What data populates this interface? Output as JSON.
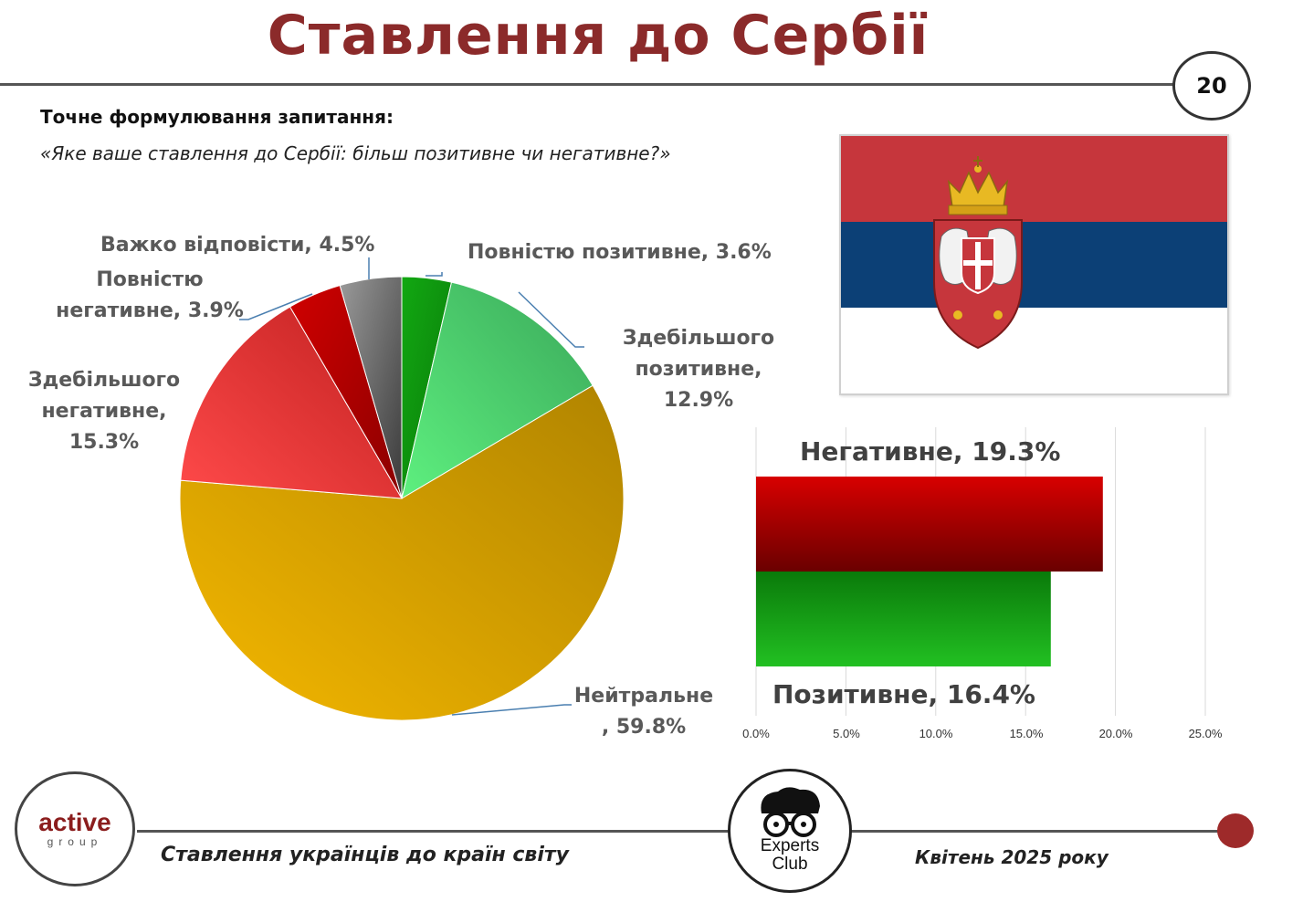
{
  "header": {
    "title": "Ставлення до Сербії",
    "page_number": "20"
  },
  "question": {
    "label": "Точне формулювання запитання:",
    "text": "«Яке ваше ставлення до Сербії: більш позитивне чи негативне?»"
  },
  "colors": {
    "title": "#8b2a2a",
    "negative_bar": "#c00000",
    "positive_bar": "#1aa81a",
    "flag_red": "#c6363c",
    "flag_blue": "#0c4076",
    "flag_white": "#ffffff"
  },
  "chart_data": [
    {
      "type": "pie",
      "slices": [
        {
          "name": "Повністю позитивне",
          "value": 3.6,
          "label": "Повністю позитивне, 3.6%",
          "color": "#109a10"
        },
        {
          "name": "Здебільшого позитивне",
          "value": 12.9,
          "label": "Здебільшого позитивне, 12.9%",
          "color": "#4ccf6f"
        },
        {
          "name": "Нейтральне",
          "value": 59.8,
          "label": "Нейтральне, 59.8%",
          "color": "#e0a800"
        },
        {
          "name": "Здебільшого негативне",
          "value": 15.3,
          "label": "Здебільшого негативне, 15.3%",
          "color": "#e8373a"
        },
        {
          "name": "Повністю негативне",
          "value": 3.9,
          "label": "Повністю негативне, 3.9%",
          "color": "#b00000"
        },
        {
          "name": "Важко відповісти",
          "value": 4.5,
          "label": "Важко відповісти, 4.5%",
          "color": "#555555"
        }
      ],
      "labels": {
        "vp": "Повністю позитивне, 3.6%",
        "zp_1": "Здебільшого",
        "zp_2": "позитивне,",
        "zp_3": "12.9%",
        "nt_1": "Нейтральне",
        "nt_2": ", 59.8%",
        "zn_1": "Здебільшого",
        "zn_2": "негативне,",
        "zn_3": "15.3%",
        "vn_1": "Повністю",
        "vn_2": "негативне, 3.9%",
        "vv": "Важко відповісти, 4.5%"
      }
    },
    {
      "type": "bar",
      "orientation": "horizontal",
      "categories": [
        "Негативне",
        "Позитивне"
      ],
      "values": [
        19.3,
        16.4
      ],
      "value_labels": [
        "Негативне, 19.3%",
        "Позитивне, 16.4%"
      ],
      "xlim": [
        0,
        25
      ],
      "ticks": [
        "0.0%",
        "5.0%",
        "10.0%",
        "15.0%",
        "20.0%",
        "25.0%"
      ],
      "grid": true
    }
  ],
  "footer": {
    "left_text": "Ставлення українців до країн світу",
    "right_text": "Квітень 2025 року",
    "logo_active_1": "active",
    "logo_active_2": "group",
    "logo_experts_1": "Experts",
    "logo_experts_2": "Club"
  }
}
